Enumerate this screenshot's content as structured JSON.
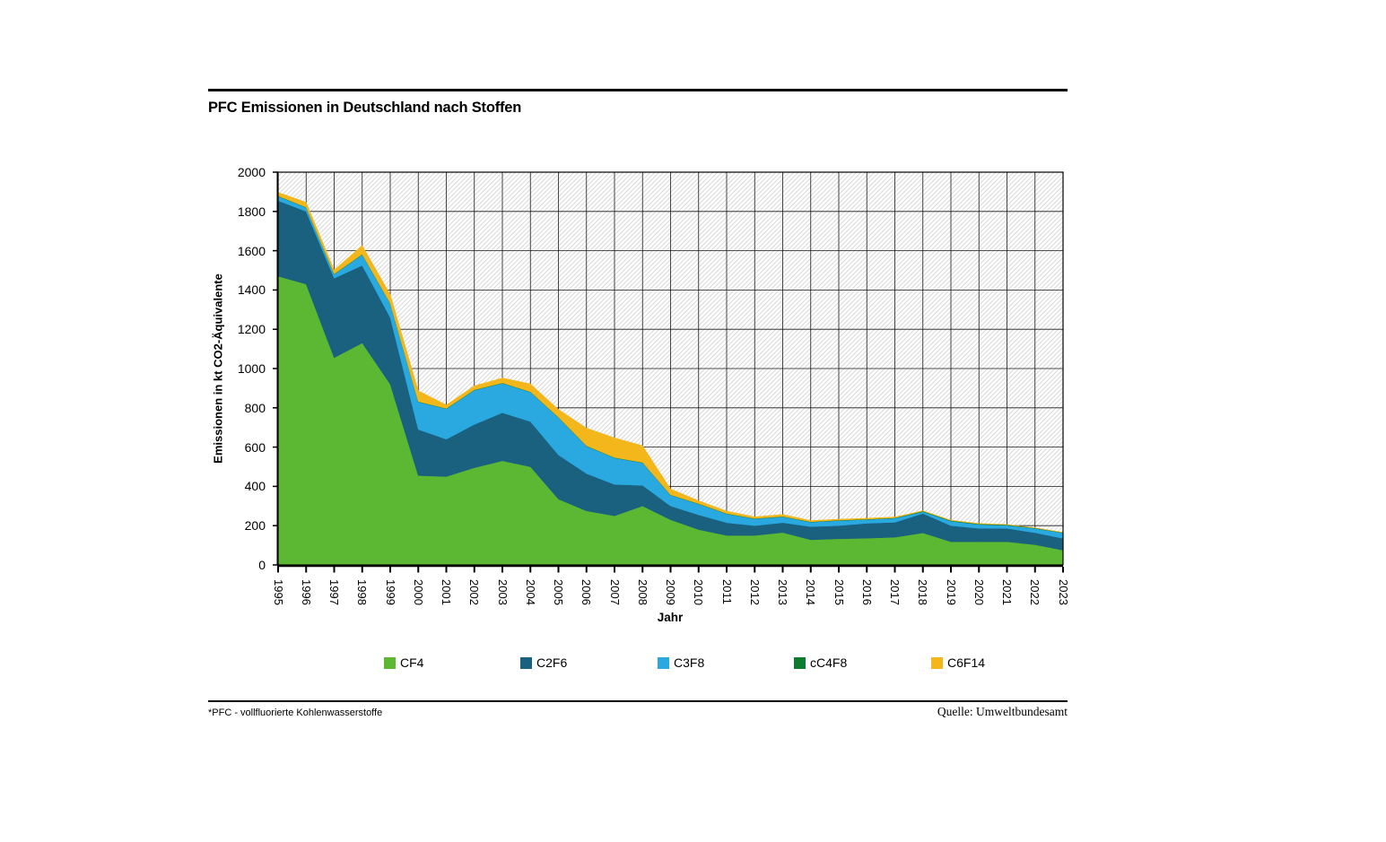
{
  "header": {
    "title": "PFC Emissionen in Deutschland nach Stoffen"
  },
  "footer": {
    "footnote": "*PFC - vollfluorierte Kohlenwasserstoffe",
    "source": "Quelle: Umweltbundesamt"
  },
  "chart_data": {
    "type": "area",
    "stacked": true,
    "title": "PFC Emissionen in Deutschland nach Stoffen",
    "xlabel": "Jahr",
    "ylabel": "Emissionen in kt CO2-Äquivalente",
    "ylim": [
      0,
      2000
    ],
    "ytick_step": 200,
    "grid": true,
    "plot_background": "diagonal-hatch",
    "legend_position": "bottom",
    "colors": {
      "grid": "#1a1a1a",
      "hatch": "#d9d9d9",
      "axis": "#000000"
    },
    "categories": [
      "1995",
      "1996",
      "1997",
      "1998",
      "1999",
      "2000",
      "2001",
      "2002",
      "2003",
      "2004",
      "2005",
      "2006",
      "2007",
      "2008",
      "2009",
      "2010",
      "2011",
      "2012",
      "2013",
      "2014",
      "2015",
      "2016",
      "2017",
      "2018",
      "2019",
      "2020",
      "2021",
      "2022",
      "2023"
    ],
    "series": [
      {
        "name": "CF4",
        "color": "#5CB732",
        "values": [
          1470,
          1430,
          1055,
          1130,
          920,
          455,
          450,
          495,
          530,
          500,
          335,
          275,
          250,
          300,
          230,
          180,
          150,
          150,
          165,
          128,
          133,
          136,
          141,
          163,
          118,
          118,
          118,
          103,
          75
        ]
      },
      {
        "name": "C2F6",
        "color": "#1A607F",
        "values": [
          385,
          370,
          405,
          395,
          340,
          235,
          190,
          220,
          245,
          230,
          225,
          190,
          160,
          105,
          70,
          75,
          65,
          50,
          50,
          67,
          67,
          76,
          76,
          99,
          82,
          68,
          68,
          61,
          60
        ]
      },
      {
        "name": "C3F8",
        "color": "#29A9E0",
        "values": [
          22,
          20,
          20,
          55,
          70,
          140,
          155,
          175,
          150,
          150,
          190,
          140,
          135,
          115,
          55,
          55,
          45,
          35,
          30,
          23,
          26,
          19,
          21,
          9,
          23,
          20,
          16,
          22,
          28
        ]
      },
      {
        "name": "cC4F8",
        "color": "#0E7C30",
        "values": [
          2,
          2,
          2,
          2,
          2,
          2,
          2,
          2,
          2,
          2,
          2,
          2,
          2,
          2,
          2,
          2,
          2,
          2,
          2,
          2,
          2,
          2,
          2,
          3,
          3,
          3,
          3,
          2,
          2
        ]
      },
      {
        "name": "C6F14",
        "color": "#F3B71B",
        "values": [
          18,
          25,
          20,
          45,
          45,
          55,
          18,
          20,
          25,
          40,
          40,
          90,
          100,
          85,
          30,
          15,
          12,
          8,
          10,
          6,
          5,
          5,
          4,
          2,
          2,
          2,
          1,
          1,
          1
        ]
      }
    ]
  },
  "layout_labels": {
    "legend_item_lefts": [
      428,
      580,
      733,
      885,
      1038
    ]
  }
}
